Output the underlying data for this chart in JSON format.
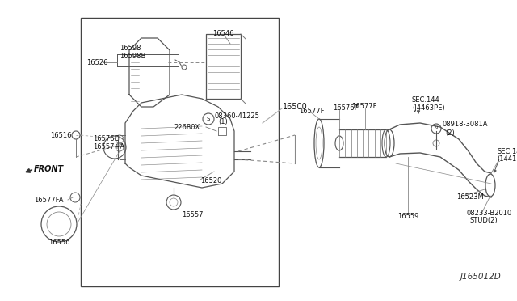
{
  "background_color": "#ffffff",
  "diagram_id": "J165012D",
  "line_color": "#555555",
  "text_color": "#111111",
  "figsize": [
    6.4,
    3.72
  ],
  "dpi": 100,
  "xlim": [
    0,
    640
  ],
  "ylim": [
    0,
    372
  ]
}
